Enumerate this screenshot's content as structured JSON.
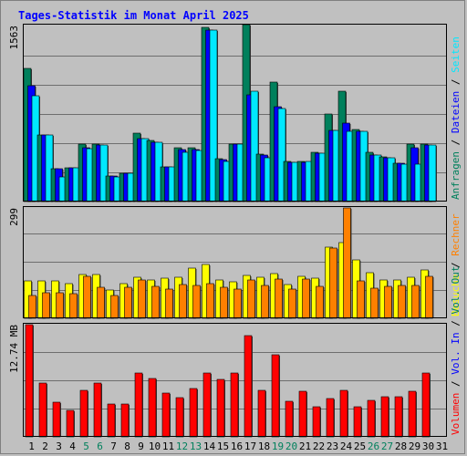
{
  "title": "Tages-Statistik im Monat April 2025",
  "chart_data": [
    {
      "type": "bar",
      "name": "requests-panel",
      "max_label": "1563",
      "ylim": [
        0,
        1563
      ],
      "right_legend": [
        {
          "text": "Anfragen",
          "color": "#00805c"
        },
        {
          "text": "Dateien",
          "color": "#0000ff"
        },
        {
          "text": "Seiten",
          "color": "#00e8ff"
        }
      ],
      "categories": [
        "1",
        "2",
        "3",
        "4",
        "5",
        "6",
        "7",
        "8",
        "9",
        "10",
        "11",
        "12",
        "13",
        "14",
        "15",
        "16",
        "17",
        "18",
        "19",
        "20",
        "21",
        "22",
        "23",
        "24",
        "25",
        "26",
        "27",
        "28",
        "29",
        "30"
      ],
      "series": [
        {
          "name": "Anfragen",
          "color": "#00805c",
          "values": [
            1180,
            590,
            290,
            300,
            510,
            510,
            230,
            250,
            610,
            540,
            310,
            480,
            480,
            1550,
            380,
            510,
            1570,
            420,
            1060,
            360,
            360,
            440,
            780,
            980,
            640,
            440,
            400,
            340,
            510,
            510
          ]
        },
        {
          "name": "Dateien",
          "color": "#0000ff",
          "values": [
            1030,
            590,
            290,
            300,
            480,
            500,
            230,
            250,
            560,
            530,
            310,
            460,
            460,
            1520,
            370,
            510,
            950,
            410,
            840,
            350,
            350,
            430,
            630,
            700,
            620,
            410,
            390,
            340,
            480,
            500
          ]
        },
        {
          "name": "Seiten",
          "color": "#00e8ff",
          "values": [
            940,
            590,
            220,
            300,
            470,
            500,
            220,
            250,
            560,
            530,
            310,
            440,
            450,
            1520,
            360,
            510,
            980,
            390,
            830,
            350,
            360,
            430,
            630,
            620,
            620,
            410,
            390,
            330,
            330,
            500
          ]
        }
      ]
    },
    {
      "type": "bar",
      "name": "visits-panel",
      "max_label": "299",
      "ylim": [
        0,
        299
      ],
      "right_legend": [
        {
          "text": "Besuche",
          "color": "#ffff00"
        },
        {
          "text": "Rechner",
          "color": "#ff8000"
        }
      ],
      "categories": [
        "1",
        "2",
        "3",
        "4",
        "5",
        "6",
        "7",
        "8",
        "9",
        "10",
        "11",
        "12",
        "13",
        "14",
        "15",
        "16",
        "17",
        "18",
        "19",
        "20",
        "21",
        "22",
        "23",
        "24",
        "25",
        "26",
        "27",
        "28",
        "29",
        "30"
      ],
      "series": [
        {
          "name": "Besuche",
          "color": "#ffff00",
          "values": [
            101,
            101,
            101,
            94,
            118,
            118,
            77,
            94,
            111,
            104,
            108,
            111,
            137,
            146,
            104,
            98,
            117,
            111,
            120,
            91,
            113,
            109,
            193,
            205,
            157,
            123,
            104,
            104,
            112,
            130
          ]
        },
        {
          "name": "Rechner",
          "color": "#ff8000",
          "values": [
            63,
            69,
            69,
            67,
            114,
            83,
            61,
            83,
            104,
            87,
            80,
            91,
            90,
            95,
            83,
            79,
            105,
            90,
            107,
            79,
            106,
            87,
            191,
            299,
            101,
            82,
            87,
            90,
            90,
            113
          ]
        }
      ]
    },
    {
      "type": "bar",
      "name": "volume-panel",
      "max_label": "12.74 MB",
      "ylim": [
        0,
        12.74
      ],
      "right_legend": [
        {
          "text": "Volumen",
          "color": "#ff0000"
        },
        {
          "text": "Vol. In",
          "color": "#0000ff"
        },
        {
          "text": "Vol. Out",
          "color": "#00805c"
        }
      ],
      "categories": [
        "1",
        "2",
        "3",
        "4",
        "5",
        "6",
        "7",
        "8",
        "9",
        "10",
        "11",
        "12",
        "13",
        "14",
        "15",
        "16",
        "17",
        "18",
        "19",
        "20",
        "21",
        "22",
        "23",
        "24",
        "25",
        "26",
        "27",
        "28",
        "29",
        "30"
      ],
      "series": [
        {
          "name": "Volumen",
          "color": "#ff0000",
          "values": [
            12.74,
            6.1,
            3.9,
            3.0,
            5.3,
            6.1,
            3.7,
            3.7,
            7.3,
            6.6,
            5.0,
            4.5,
            5.5,
            7.2,
            6.5,
            7.2,
            11.5,
            5.3,
            9.3,
            4.0,
            5.2,
            3.4,
            4.4,
            5.3,
            3.4,
            4.1,
            4.6,
            4.6,
            5.2,
            7.3
          ]
        }
      ]
    }
  ],
  "x_axis": {
    "days": [
      "1",
      "2",
      "3",
      "4",
      "5",
      "6",
      "7",
      "8",
      "9",
      "10",
      "11",
      "12",
      "13",
      "14",
      "15",
      "16",
      "17",
      "18",
      "19",
      "20",
      "21",
      "22",
      "23",
      "24",
      "25",
      "26",
      "27",
      "28",
      "29",
      "30",
      "31"
    ],
    "weekend_days": [
      "5",
      "6",
      "12",
      "13",
      "19",
      "20",
      "26",
      "27"
    ],
    "weekday_color": "#000000",
    "weekend_color": "#00805c"
  },
  "colors": {
    "panel_bg": "#c0c0c0",
    "frame": "#7f7f7f",
    "title": "#0000ff",
    "separator": "#000000"
  }
}
